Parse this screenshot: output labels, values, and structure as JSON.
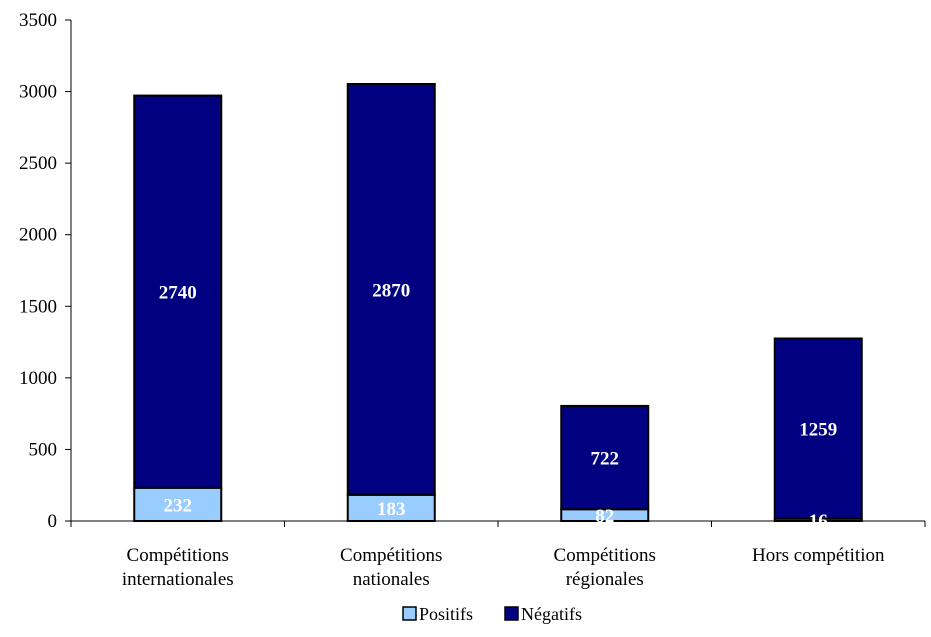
{
  "chart_data": {
    "type": "bar",
    "stacked": true,
    "categories": [
      [
        "Compétitions",
        "internationales"
      ],
      [
        "Compétitions",
        "nationales"
      ],
      [
        "Compétitions",
        "régionales"
      ],
      [
        "Hors compétition"
      ]
    ],
    "series": [
      {
        "name": "Positifs",
        "color": "#99ccff",
        "values": [
          232,
          183,
          82,
          16
        ]
      },
      {
        "name": "Négatifs",
        "color": "#000080",
        "values": [
          2740,
          2870,
          722,
          1259
        ]
      }
    ],
    "title": "",
    "xlabel": "",
    "ylabel": "",
    "ylim": [
      0,
      3500
    ],
    "yticks": [
      0,
      500,
      1000,
      1500,
      2000,
      2500,
      3000,
      3500
    ],
    "grid": false,
    "legend": "bottom",
    "data_labels": true
  }
}
